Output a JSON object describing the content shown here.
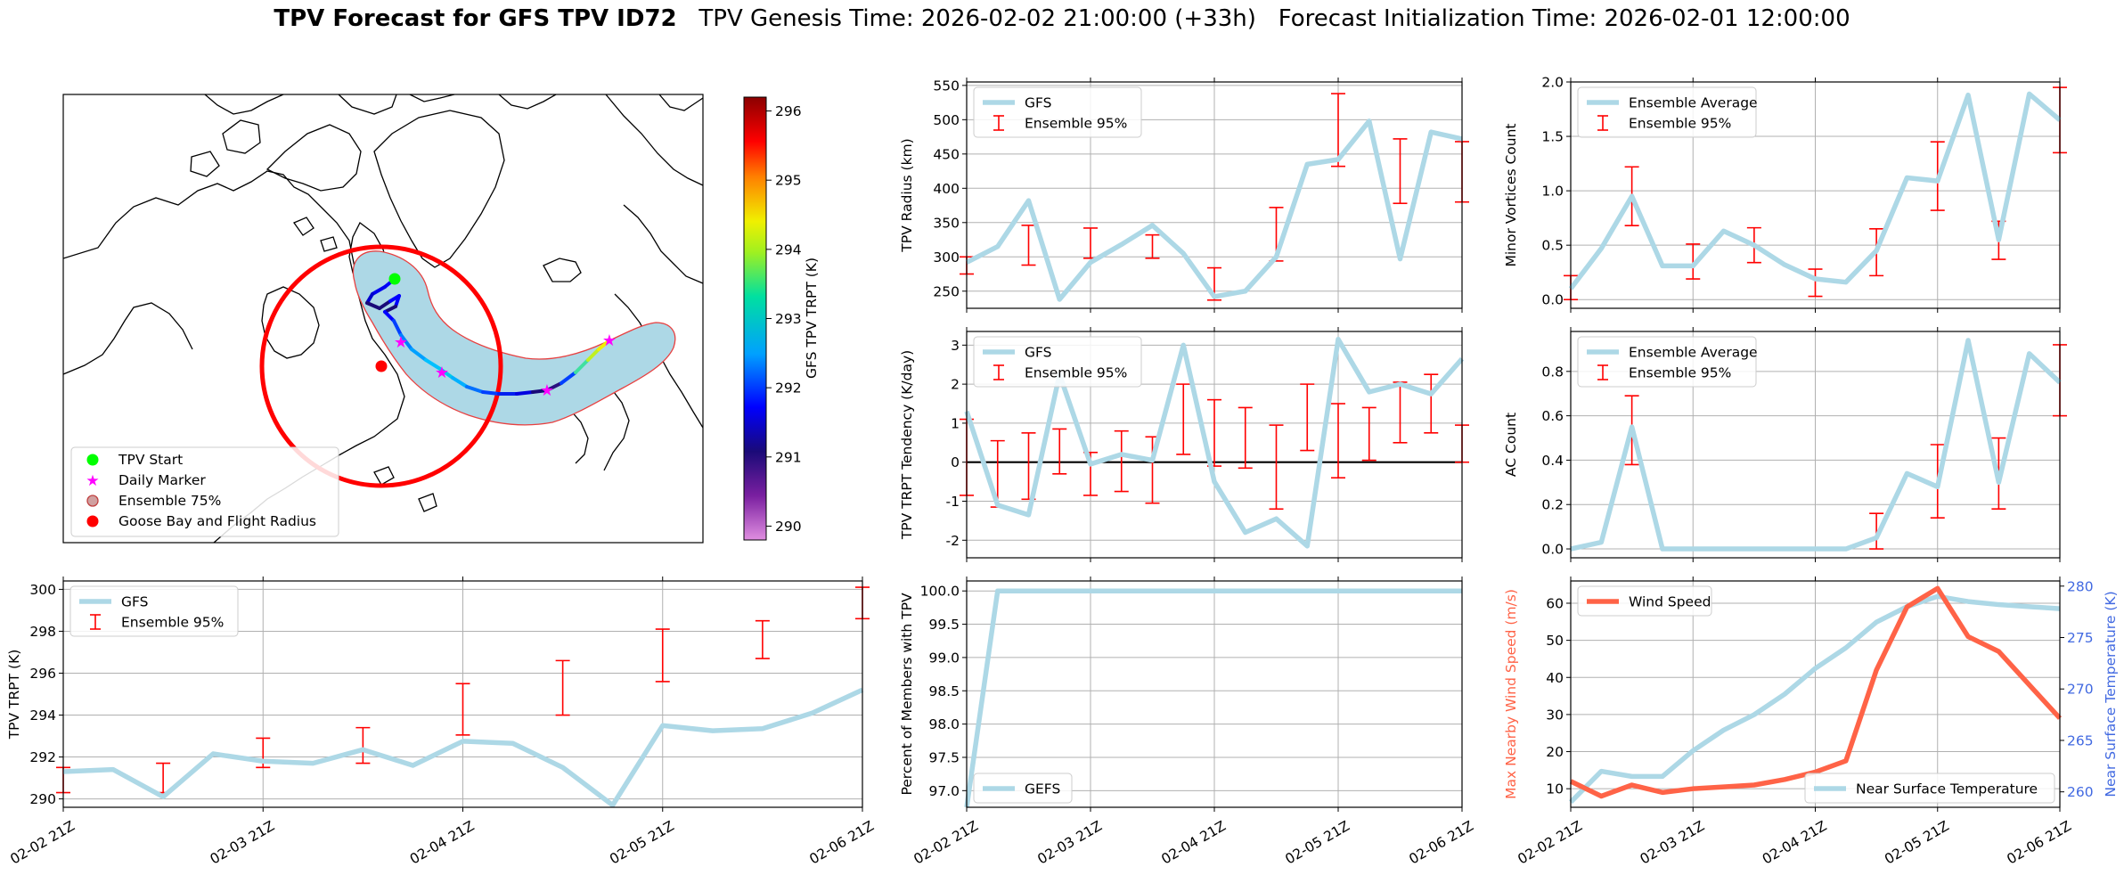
{
  "title": {
    "bold": "TPV Forecast for GFS TPV ID72",
    "genesis": "TPV Genesis Time: 2026-02-02 21:00:00 (+33h)",
    "init": "Forecast Initialization Time: 2026-02-01 12:00:00"
  },
  "colors": {
    "gfs_line": "#add8e6",
    "error_bar": "#ff0000",
    "wind": "#ff6347",
    "temp_axis": "#4169e1",
    "grid": "#b0b0b0"
  },
  "map": {
    "legend": [
      "TPV Start",
      "Daily Marker",
      "Ensemble 75%",
      "Goose Bay and Flight Radius"
    ],
    "colorbar_label": "GFS TPV TRPT (K)",
    "colorbar_ticks": [
      290,
      291,
      292,
      293,
      294,
      295,
      296
    ],
    "colorbar_range": [
      289.8,
      296.2
    ]
  },
  "time_ticks": [
    "02-02 21Z",
    "02-03 21Z",
    "02-04 21Z",
    "02-05 21Z",
    "02-06 21Z"
  ],
  "chart_data": [
    {
      "id": "radius",
      "type": "line",
      "ylabel": "TPV Radius (km)",
      "ylim": [
        225,
        555
      ],
      "yticks": [
        250,
        300,
        350,
        400,
        450,
        500,
        550
      ],
      "legend": [
        "GFS",
        "Ensemble 95%"
      ],
      "x": [
        0,
        0.25,
        0.5,
        0.75,
        1,
        1.25,
        1.5,
        1.75,
        2,
        2.25,
        2.5,
        2.75,
        3,
        3.25,
        3.5,
        3.75,
        4
      ],
      "gfs": [
        292,
        315,
        382,
        238,
        292,
        318,
        346,
        305,
        242,
        250,
        300,
        435,
        442,
        498,
        297,
        482,
        472
      ],
      "errors": [
        [
          0,
          275,
          300
        ],
        [
          0.5,
          288,
          346
        ],
        [
          1,
          298,
          342
        ],
        [
          1.5,
          298,
          332
        ],
        [
          2,
          237,
          284
        ],
        [
          2.5,
          294,
          372
        ],
        [
          3,
          432,
          538
        ],
        [
          3.5,
          378,
          472
        ],
        [
          4,
          380,
          468
        ]
      ]
    },
    {
      "id": "minor",
      "type": "line",
      "ylabel": "Minor Vortices Count",
      "ylim": [
        -0.08,
        2.0
      ],
      "yticks": [
        0.0,
        0.5,
        1.0,
        1.5,
        2.0
      ],
      "legend": [
        "Ensemble Average",
        "Ensemble 95%"
      ],
      "x": [
        0,
        0.25,
        0.5,
        0.75,
        1,
        1.25,
        1.5,
        1.75,
        2,
        2.25,
        2.5,
        2.75,
        3,
        3.25,
        3.5,
        3.75,
        4
      ],
      "gfs": [
        0.1,
        0.47,
        0.95,
        0.31,
        0.31,
        0.63,
        0.5,
        0.32,
        0.19,
        0.16,
        0.45,
        1.12,
        1.09,
        1.88,
        0.55,
        1.89,
        1.65
      ],
      "errors": [
        [
          0,
          0.0,
          0.22
        ],
        [
          0.5,
          0.68,
          1.22
        ],
        [
          1,
          0.19,
          0.51
        ],
        [
          1.5,
          0.34,
          0.66
        ],
        [
          2,
          0.03,
          0.28
        ],
        [
          2.5,
          0.22,
          0.65
        ],
        [
          3,
          0.82,
          1.45
        ],
        [
          3.5,
          0.37,
          0.72
        ],
        [
          4,
          1.35,
          1.95
        ]
      ]
    },
    {
      "id": "tendency",
      "type": "line",
      "ylabel": "TPV TRPT Tendency (K/day)",
      "ylim": [
        -2.45,
        3.35
      ],
      "yticks": [
        -2,
        -1,
        0,
        1,
        2,
        3
      ],
      "legend": [
        "GFS",
        "Ensemble 95%"
      ],
      "x": [
        0,
        0.25,
        0.5,
        0.75,
        1,
        1.25,
        1.5,
        1.75,
        2,
        2.25,
        2.5,
        2.75,
        3,
        3.25,
        3.5,
        3.75,
        4
      ],
      "gfs": [
        1.3,
        -1.1,
        -1.35,
        2.25,
        -0.05,
        0.2,
        0.05,
        3.0,
        -0.5,
        -1.8,
        -1.45,
        -2.15,
        3.15,
        1.8,
        2.0,
        1.75,
        2.65
      ],
      "errors": [
        [
          0,
          -0.85,
          1.1
        ],
        [
          0.25,
          -1.15,
          0.55
        ],
        [
          0.5,
          -0.95,
          0.75
        ],
        [
          0.75,
          -0.3,
          0.85
        ],
        [
          1,
          -0.85,
          0.25
        ],
        [
          1.25,
          -0.75,
          0.8
        ],
        [
          1.5,
          -1.05,
          0.65
        ],
        [
          1.75,
          0.2,
          2.0
        ],
        [
          2,
          -0.1,
          1.6
        ],
        [
          2.25,
          -0.15,
          1.4
        ],
        [
          2.5,
          -1.2,
          0.95
        ],
        [
          2.75,
          0.3,
          2.0
        ],
        [
          3,
          -0.4,
          1.5
        ],
        [
          3.25,
          0.05,
          1.4
        ],
        [
          3.5,
          0.5,
          2.05
        ],
        [
          3.75,
          0.75,
          2.25
        ],
        [
          4,
          0.0,
          0.95
        ]
      ]
    },
    {
      "id": "ac",
      "type": "line",
      "ylabel": "AC Count",
      "ylim": [
        -0.04,
        0.98
      ],
      "yticks": [
        0.0,
        0.2,
        0.4,
        0.6,
        0.8
      ],
      "legend": [
        "Ensemble Average",
        "Ensemble 95%"
      ],
      "x": [
        0,
        0.25,
        0.5,
        0.75,
        1,
        1.25,
        1.5,
        1.75,
        2,
        2.25,
        2.5,
        2.75,
        3,
        3.25,
        3.5,
        3.75,
        4
      ],
      "gfs": [
        0,
        0.03,
        0.55,
        0,
        0,
        0,
        0,
        0,
        0,
        0,
        0.05,
        0.34,
        0.28,
        0.94,
        0.3,
        0.88,
        0.75
      ],
      "errors": [
        [
          0.5,
          0.38,
          0.69
        ],
        [
          1,
          0,
          0
        ],
        [
          1.5,
          0,
          0
        ],
        [
          2,
          0,
          0
        ],
        [
          2.5,
          0,
          0.16
        ],
        [
          3,
          0.14,
          0.47
        ],
        [
          3.5,
          0.18,
          0.5
        ],
        [
          4,
          0.6,
          0.92
        ]
      ]
    },
    {
      "id": "trpt",
      "type": "line",
      "ylabel": "TPV TRPT (K)",
      "ylim": [
        289.6,
        300.4
      ],
      "yticks": [
        290,
        292,
        294,
        296,
        298,
        300
      ],
      "legend": [
        "GFS",
        "Ensemble 95%"
      ],
      "x": [
        0,
        0.25,
        0.5,
        0.75,
        1,
        1.25,
        1.5,
        1.75,
        2,
        2.25,
        2.5,
        2.75,
        3,
        3.25,
        3.5,
        3.75,
        4
      ],
      "gfs": [
        291.3,
        291.4,
        290.1,
        292.15,
        291.8,
        291.7,
        292.35,
        291.6,
        292.75,
        292.65,
        291.5,
        289.7,
        293.5,
        293.25,
        293.35,
        294.1,
        295.2
      ],
      "errors": [
        [
          0,
          290.3,
          291.5
        ],
        [
          0.5,
          290.3,
          291.7
        ],
        [
          1,
          291.5,
          292.9
        ],
        [
          1.5,
          291.7,
          293.4
        ],
        [
          2,
          293.05,
          295.5
        ],
        [
          2.5,
          294.0,
          296.6
        ],
        [
          3,
          295.6,
          298.1
        ],
        [
          3.5,
          296.7,
          298.5
        ],
        [
          4,
          298.6,
          300.1
        ]
      ]
    },
    {
      "id": "members",
      "type": "line",
      "ylabel": "Percent of Members with TPV",
      "ylim": [
        96.75,
        100.15
      ],
      "yticks": [
        97.0,
        97.5,
        98.0,
        98.5,
        99.0,
        99.5,
        100.0
      ],
      "legend": [
        "GEFS"
      ],
      "x": [
        0,
        0.25,
        0.5,
        1,
        1.5,
        2,
        2.5,
        3,
        3.5,
        4
      ],
      "gfs": [
        96.75,
        100,
        100,
        100,
        100,
        100,
        100,
        100,
        100,
        100
      ],
      "errors": []
    },
    {
      "id": "wind",
      "type": "line",
      "ylabel": "Max Nearby Wind Speed (m/s)",
      "ylabel_right": "Near Surface Temperature (K)",
      "ylim": [
        5,
        66
      ],
      "yticks": [
        10,
        20,
        30,
        40,
        50,
        60
      ],
      "ylim_right": [
        258.5,
        280.5
      ],
      "yticks_right": [
        260,
        265,
        270,
        275,
        280
      ],
      "legend": [
        "Wind Speed"
      ],
      "legend_right": [
        "Near Surface Temperature"
      ],
      "x": [
        0,
        0.25,
        0.5,
        0.75,
        1,
        1.25,
        1.5,
        1.75,
        2,
        2.25,
        2.5,
        2.75,
        3,
        3.25,
        3.5,
        3.75,
        4
      ],
      "wind": [
        12,
        8,
        11,
        9,
        10,
        10.5,
        11,
        12.5,
        14.5,
        17.5,
        42,
        59,
        64,
        51,
        47,
        38,
        29
      ],
      "temp": [
        259,
        262,
        261.5,
        261.5,
        264,
        266,
        267.5,
        269.5,
        272,
        274,
        276.5,
        278,
        279,
        278.5,
        278.2,
        278,
        277.8
      ]
    }
  ]
}
